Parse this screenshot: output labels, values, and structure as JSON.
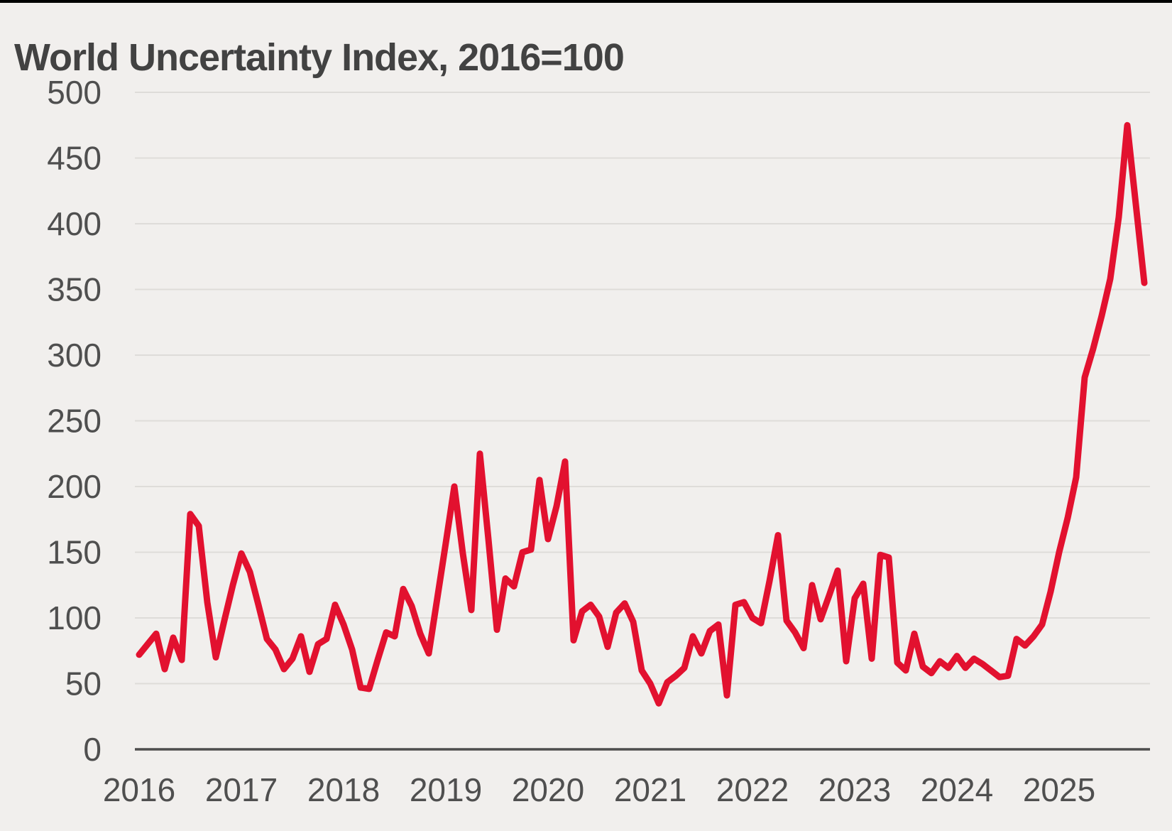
{
  "page": {
    "title": "World Uncertainty Index, 2016=100"
  },
  "colors": {
    "line": "#e2112f",
    "background": "#f1efed",
    "grid": "#dedcd9",
    "axis": "#4d4d4d",
    "text": "#4f4f4f",
    "title_text": "#424242",
    "top_border": "#000000"
  },
  "chart_data": {
    "type": "line",
    "title": "World Uncertainty Index, 2016=100",
    "xlabel": "",
    "ylabel": "",
    "ylim": [
      0,
      500
    ],
    "y_ticks": [
      0,
      50,
      100,
      150,
      200,
      250,
      300,
      350,
      400,
      450,
      500
    ],
    "x_tick_labels": [
      "2016",
      "2017",
      "2018",
      "2019",
      "2020",
      "2021",
      "2022",
      "2023",
      "2024",
      "2025"
    ],
    "grid": "horizontal",
    "legend": "none",
    "series": [
      {
        "name": "World Uncertainty Index (2016=100)",
        "frequency": "monthly",
        "start_month": "2016-01",
        "end_month": "2025-11",
        "values": [
          72,
          80,
          88,
          61,
          85,
          68,
          179,
          170,
          112,
          70,
          98,
          125,
          149,
          135,
          110,
          84,
          76,
          61,
          69,
          86,
          59,
          80,
          84,
          110,
          95,
          76,
          47,
          46,
          68,
          89,
          86,
          122,
          109,
          88,
          73,
          115,
          157,
          200,
          149,
          106,
          225,
          160,
          91,
          130,
          124,
          150,
          152,
          205,
          160,
          185,
          219,
          83,
          105,
          110,
          101,
          78,
          104,
          111,
          97,
          60,
          50,
          35,
          51,
          56,
          62,
          86,
          73,
          90,
          95,
          41,
          110,
          112,
          100,
          96,
          128,
          163,
          98,
          89,
          77,
          125,
          99,
          117,
          136,
          67,
          115,
          126,
          69,
          148,
          146,
          66,
          60,
          88,
          63,
          58,
          67,
          62,
          71,
          62,
          69,
          65,
          60,
          55,
          56,
          84,
          79,
          86,
          95,
          120,
          150,
          176,
          207,
          283,
          305,
          330,
          358,
          405,
          475,
          415,
          355
        ]
      }
    ]
  }
}
